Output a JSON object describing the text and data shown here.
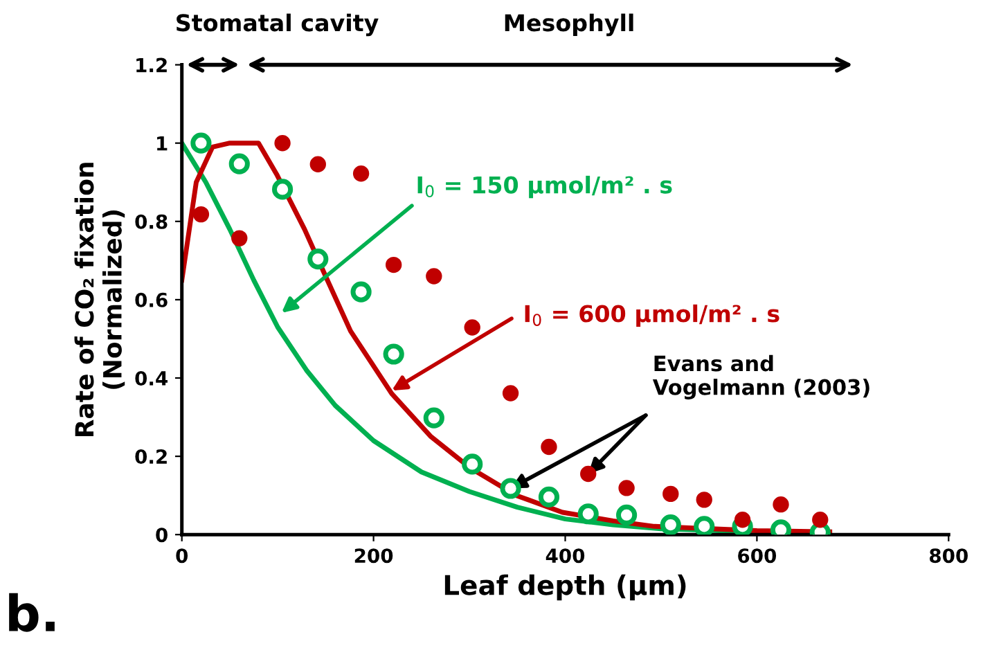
{
  "chart_data": {
    "type": "line",
    "xlabel": "Leaf depth (µm)",
    "ylabel": "Rate of CO₂ fixation\n(Normalized)",
    "xlim": [
      0,
      800
    ],
    "ylim": [
      0,
      1.2
    ],
    "xticks": [
      0,
      200,
      400,
      600,
      800
    ],
    "yticks": [
      0,
      0.2,
      0.4,
      0.6,
      0.8,
      {
        "value": 1.0,
        "label": "1"
      },
      1.2
    ],
    "grid": false,
    "series": [
      {
        "color": "#00b050",
        "x": [
          0,
          25,
          50,
          75,
          100,
          130,
          160,
          200,
          250,
          300,
          350,
          400,
          450,
          500,
          600,
          676
        ],
        "values": [
          1.0,
          0.9,
          0.78,
          0.65,
          0.53,
          0.42,
          0.33,
          0.24,
          0.16,
          0.11,
          0.07,
          0.04,
          0.025,
          0.015,
          0.007,
          0.004
        ]
      },
      {
        "color": "#c00000",
        "x": [
          0,
          15,
          32,
          50,
          80,
          99,
          128,
          150,
          176,
          219,
          260,
          301,
          349,
          397,
          450,
          493,
          600,
          676
        ],
        "values": [
          0.65,
          0.9,
          0.99,
          1.0,
          1.0,
          0.92,
          0.78,
          0.66,
          0.52,
          0.36,
          0.25,
          0.17,
          0.1,
          0.057,
          0.035,
          0.021,
          0.01,
          0.007
        ]
      },
      {
        "type": "scatter",
        "marker": "circle",
        "color": "#00b050",
        "x": [
          20,
          60,
          105,
          142,
          187,
          221,
          263,
          303,
          343,
          383,
          424,
          464,
          510,
          545,
          585,
          625,
          666
        ],
        "values": [
          1.0,
          0.947,
          0.882,
          0.704,
          0.62,
          0.461,
          0.298,
          0.18,
          0.118,
          0.096,
          0.053,
          0.05,
          0.025,
          0.021,
          0.021,
          0.012,
          0.006
        ]
      },
      {
        "type": "scatter",
        "marker": "circle",
        "color": "#c00000",
        "x": [
          20,
          60,
          105,
          142,
          187,
          221,
          263,
          303,
          343,
          383,
          424,
          464,
          510,
          545,
          585,
          625,
          666
        ],
        "values": [
          0.818,
          0.757,
          1.0,
          0.946,
          0.922,
          0.689,
          0.66,
          0.529,
          0.361,
          0.224,
          0.155,
          0.119,
          0.104,
          0.089,
          0.038,
          0.077,
          0.038
        ]
      }
    ],
    "annotations": [
      "Stomatal cavity",
      "Mesophyll",
      "I$_{0}$ = 150 µmol/m² . s",
      {
        "text": "I$_{0}$ = 600 µmol/m² . s",
        "x": 219,
        "y": 0.368
      },
      {
        "text": "Evans and\nVogelmann (2003)",
        "x": 343,
        "y": 0.118
      },
      "b."
    ]
  }
}
